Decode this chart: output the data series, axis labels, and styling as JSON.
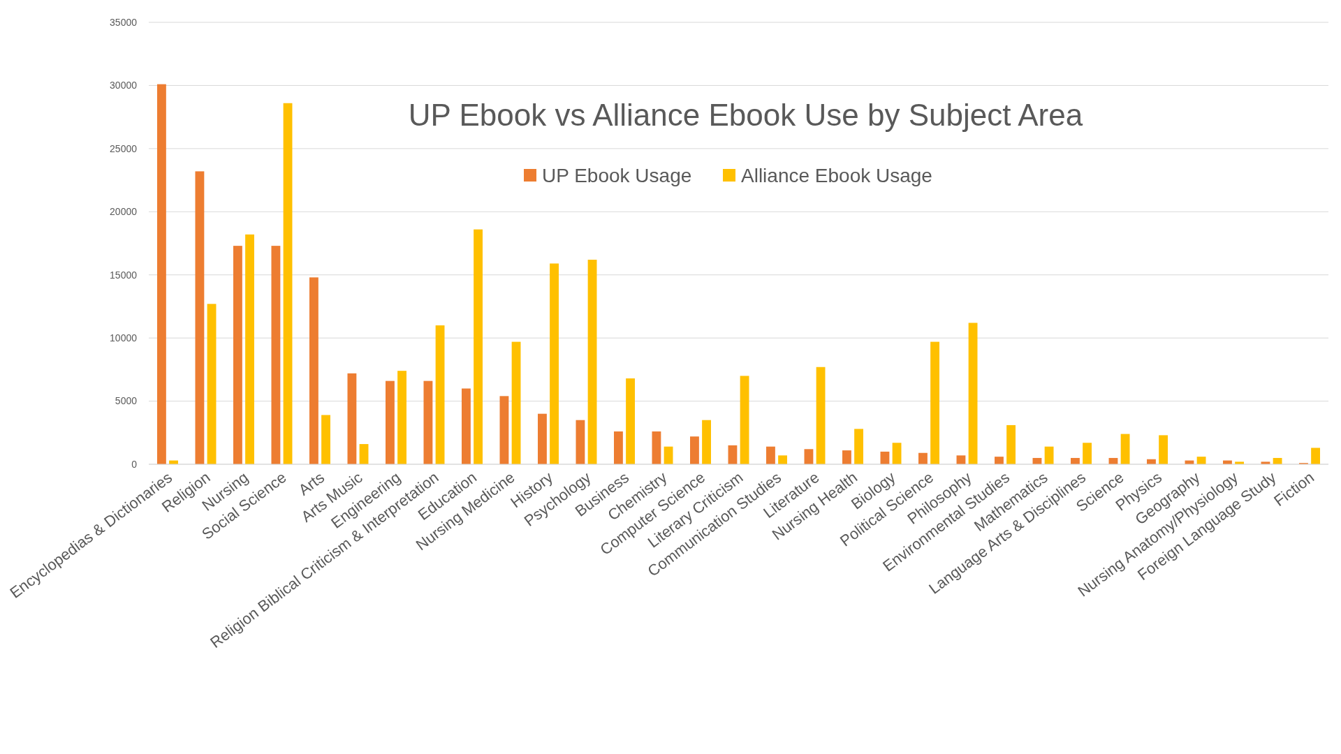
{
  "chart_data": {
    "type": "bar",
    "title": "UP Ebook vs Alliance Ebook Use by Subject Area",
    "categories": [
      "Encyclopedias & Dictionaries",
      "Religion",
      "Nursing",
      "Social Science",
      "Arts",
      "Arts Music",
      "Engineering",
      "Religion Biblical Criticism & Interpretation",
      "Education",
      "Nursing Medicine",
      "History",
      "Psychology",
      "Business",
      "Chemistry",
      "Computer Science",
      "Literary Criticism",
      "Communication Studies",
      "Literature",
      "Nursing Health",
      "Biology",
      "Political Science",
      "Philosophy",
      "Environmental Studies",
      "Mathematics",
      "Language Arts & Disciplines",
      "Science",
      "Physics",
      "Geography",
      "Nursing Anatomy/Physiology",
      "Foreign Language Study",
      "Fiction"
    ],
    "series": [
      {
        "name": "UP Ebook Usage",
        "color": "#ed7d31",
        "values": [
          30100,
          23200,
          17300,
          17300,
          14800,
          7200,
          6600,
          6600,
          6000,
          5400,
          4000,
          3500,
          2600,
          2600,
          2200,
          1500,
          1400,
          1200,
          1100,
          1000,
          900,
          700,
          600,
          500,
          500,
          500,
          400,
          300,
          300,
          200,
          100
        ]
      },
      {
        "name": "Alliance Ebook Usage",
        "color": "#ffc000",
        "values": [
          300,
          12700,
          18200,
          28600,
          3900,
          1600,
          7400,
          11000,
          18600,
          9700,
          15900,
          16200,
          6800,
          1400,
          3500,
          7000,
          700,
          7700,
          2800,
          1700,
          9700,
          11200,
          3100,
          1400,
          1700,
          2400,
          2300,
          600,
          200,
          500,
          1300
        ]
      }
    ],
    "ylim": [
      0,
      35000
    ],
    "yticks": [
      0,
      5000,
      10000,
      15000,
      20000,
      25000,
      30000,
      35000
    ],
    "grid": "y",
    "legend": "top"
  }
}
